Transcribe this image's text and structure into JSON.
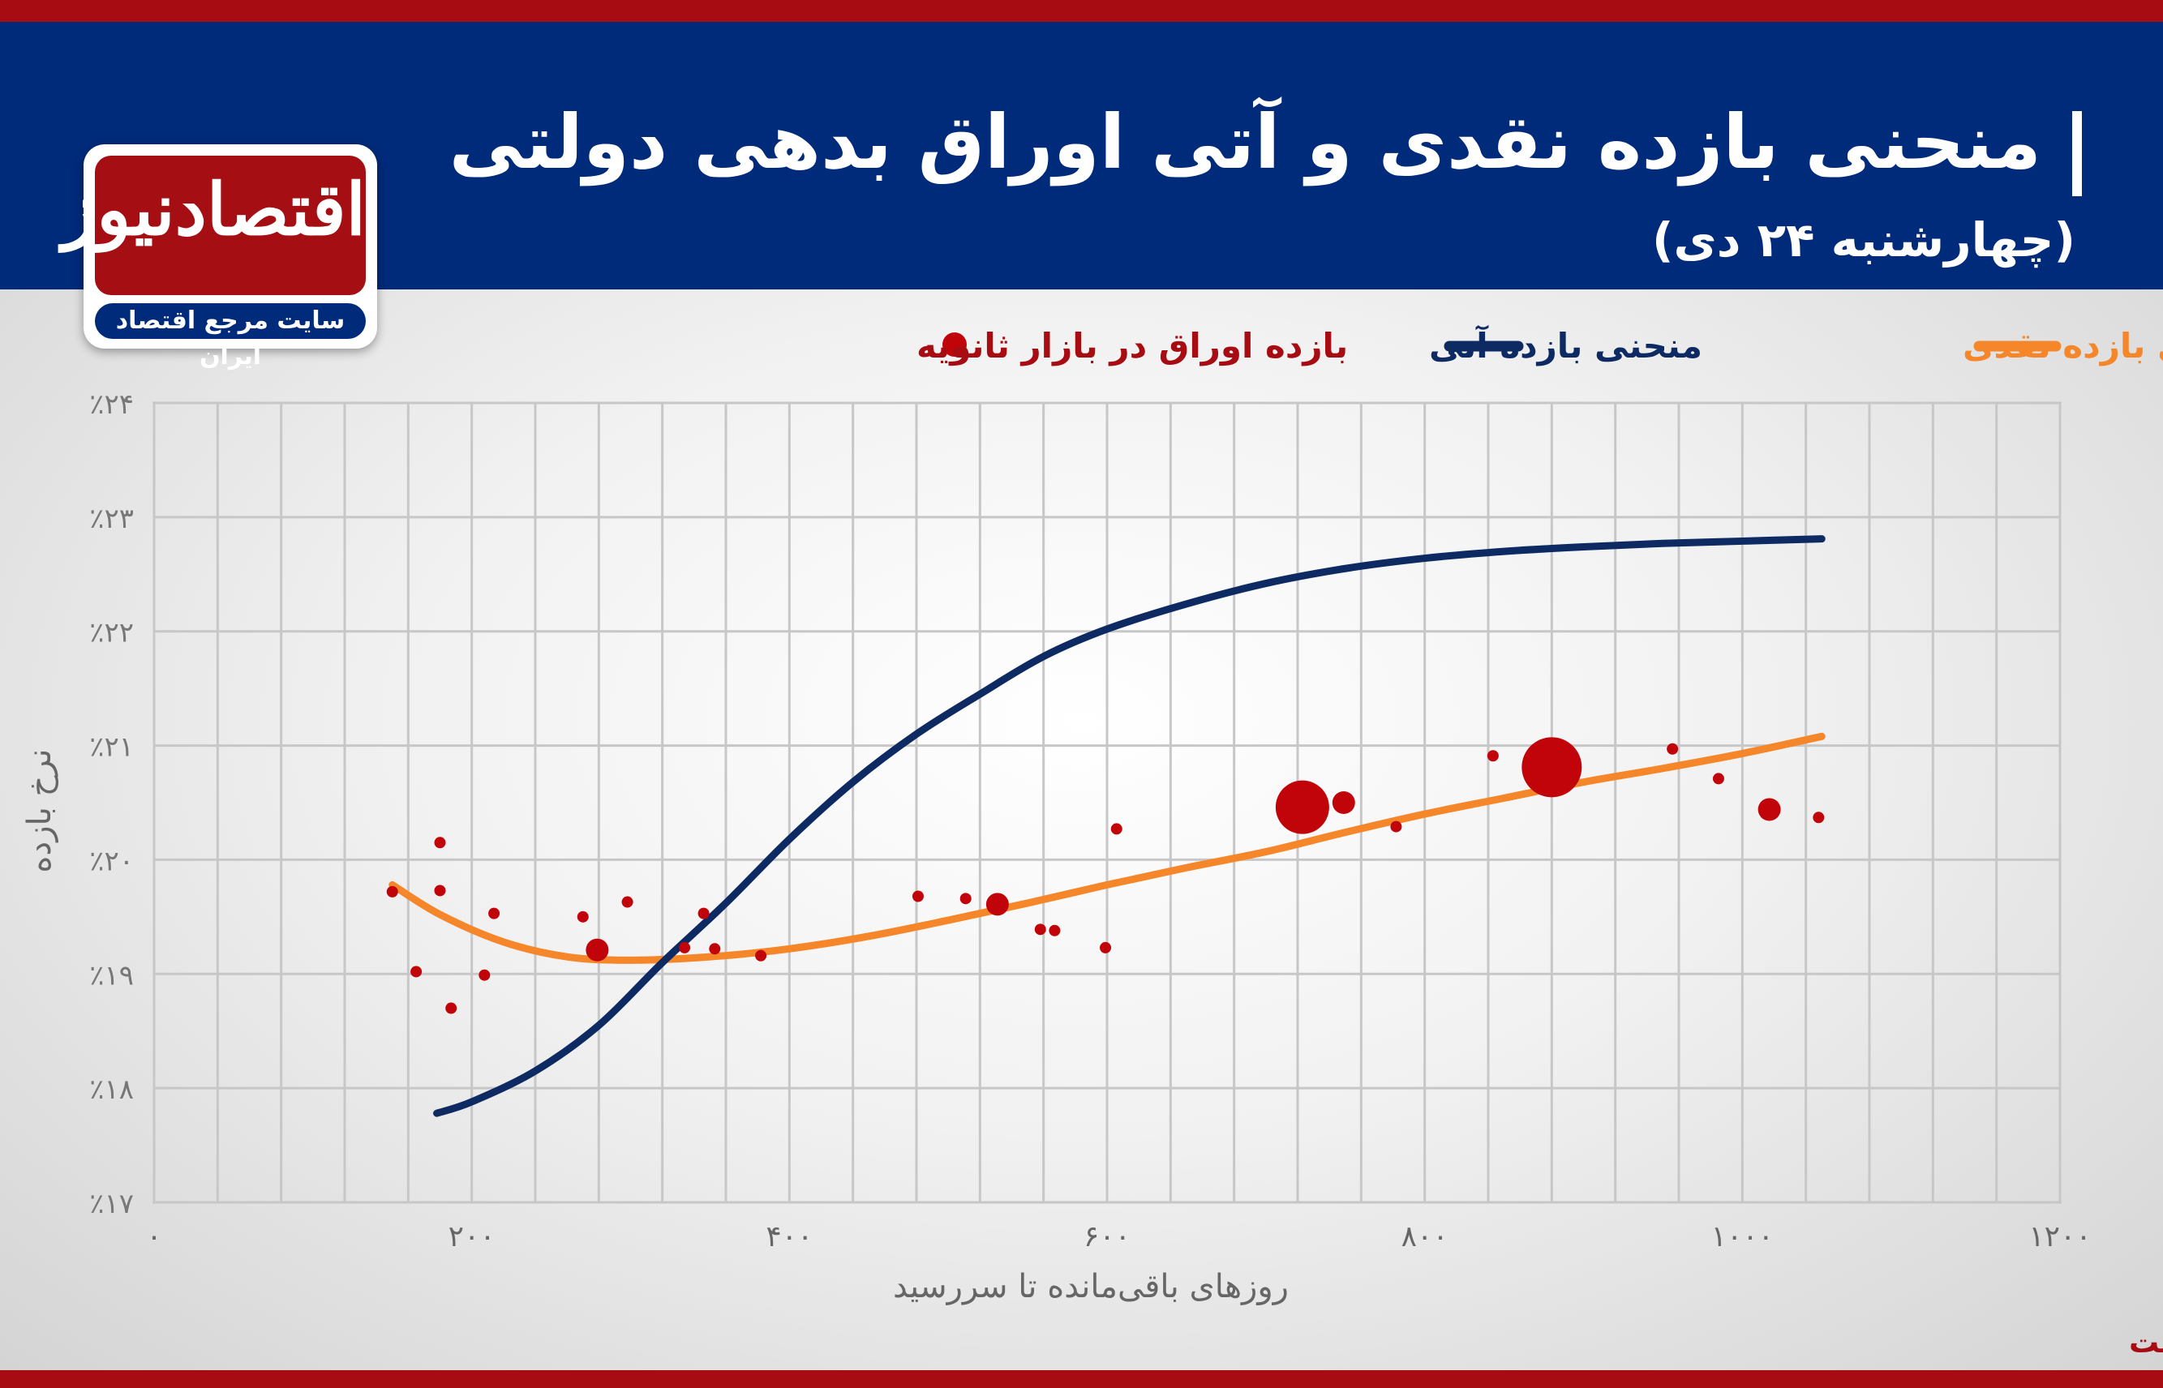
{
  "header": {
    "title": "منحنی بازده نقدی و آتی اوراق بدهی دولتی",
    "subtitle": "(چهارشنبه ۲۴ دی)"
  },
  "logo": {
    "name": "اقتصادنیوز",
    "tagline": "سایت مرجع اقتصاد ایران"
  },
  "colors": {
    "brand_red": "#a60c12",
    "header_blue": "#002a7a",
    "spot_curve": "#f5862a",
    "forward_curve": "#0d2a63",
    "points": "#c0040a",
    "grid": "#c7c7c7"
  },
  "chart_data": {
    "type": "scatter",
    "legend": {
      "spot": "منحنی بازده نقدی",
      "forward": "منحنی بازده آتی",
      "points": "بازده اوراق در بازار ثانویه"
    },
    "xlabel": "روزهای باقی‌مانده تا سررسید",
    "ylabel": "نرخ بازده",
    "xlim": [
      0,
      1200
    ],
    "ylim": [
      17,
      24
    ],
    "x_ticks": [
      0,
      200,
      400,
      600,
      800,
      1000,
      1200
    ],
    "x_tick_labels": [
      "۰",
      "۲۰۰",
      "۴۰۰",
      "۶۰۰",
      "۸۰۰",
      "۱۰۰۰",
      "۱۲۰۰"
    ],
    "y_ticks": [
      17,
      18,
      19,
      20,
      21,
      22,
      23,
      24
    ],
    "y_tick_labels": [
      "٪۱۷",
      "٪۱۸",
      "٪۱۹",
      "٪۲۰",
      "٪۲۱",
      "٪۲۲",
      "٪۲۳",
      "٪۲۴"
    ],
    "grid": true,
    "legend_position": "top",
    "series": [
      {
        "key": "spot",
        "x": [
          150,
          180,
          220,
          260,
          300,
          350,
          400,
          450,
          500,
          550,
          600,
          650,
          700,
          750,
          800,
          850,
          900,
          950,
          1000,
          1050
        ],
        "y": [
          19.78,
          19.52,
          19.28,
          19.15,
          19.12,
          19.15,
          19.22,
          19.33,
          19.47,
          19.62,
          19.78,
          19.93,
          20.07,
          20.24,
          20.4,
          20.54,
          20.68,
          20.8,
          20.93,
          21.08
        ]
      },
      {
        "key": "forward",
        "x": [
          178,
          200,
          240,
          280,
          320,
          360,
          400,
          440,
          480,
          520,
          560,
          600,
          650,
          700,
          750,
          800,
          850,
          900,
          950,
          1000,
          1050
        ],
        "y": [
          17.78,
          17.88,
          18.15,
          18.55,
          19.1,
          19.62,
          20.18,
          20.68,
          21.1,
          21.45,
          21.78,
          22.02,
          22.24,
          22.42,
          22.55,
          22.64,
          22.7,
          22.74,
          22.77,
          22.79,
          22.81
        ]
      }
    ],
    "points": [
      {
        "x": 150,
        "y": 19.72,
        "size": 1
      },
      {
        "x": 165,
        "y": 19.02,
        "size": 1
      },
      {
        "x": 180,
        "y": 20.15,
        "size": 1
      },
      {
        "x": 180,
        "y": 19.73,
        "size": 1
      },
      {
        "x": 187,
        "y": 18.7,
        "size": 1
      },
      {
        "x": 208,
        "y": 18.99,
        "size": 1
      },
      {
        "x": 214,
        "y": 19.53,
        "size": 1
      },
      {
        "x": 270,
        "y": 19.5,
        "size": 1
      },
      {
        "x": 279,
        "y": 19.21,
        "size": 2
      },
      {
        "x": 298,
        "y": 19.63,
        "size": 1
      },
      {
        "x": 334,
        "y": 19.23,
        "size": 1
      },
      {
        "x": 346,
        "y": 19.53,
        "size": 1
      },
      {
        "x": 353,
        "y": 19.22,
        "size": 1
      },
      {
        "x": 382,
        "y": 19.16,
        "size": 1
      },
      {
        "x": 481,
        "y": 19.68,
        "size": 1
      },
      {
        "x": 511,
        "y": 19.66,
        "size": 1
      },
      {
        "x": 531,
        "y": 19.61,
        "size": 2
      },
      {
        "x": 558,
        "y": 19.39,
        "size": 1
      },
      {
        "x": 567,
        "y": 19.38,
        "size": 1
      },
      {
        "x": 599,
        "y": 19.23,
        "size": 1
      },
      {
        "x": 606,
        "y": 20.27,
        "size": 1
      },
      {
        "x": 723,
        "y": 20.46,
        "size": 4
      },
      {
        "x": 749,
        "y": 20.5,
        "size": 2
      },
      {
        "x": 782,
        "y": 20.29,
        "size": 1
      },
      {
        "x": 843,
        "y": 20.91,
        "size": 1
      },
      {
        "x": 880,
        "y": 20.81,
        "size": 5
      },
      {
        "x": 956,
        "y": 20.97,
        "size": 1
      },
      {
        "x": 985,
        "y": 20.71,
        "size": 1
      },
      {
        "x": 1017,
        "y": 20.44,
        "size": 2
      },
      {
        "x": 1048,
        "y": 20.37,
        "size": 1
      }
    ],
    "footnote": "اندازه نقطه‌ها، حجم معاملات در هر نماد را نشان می‌دهد و در تخمین منحنی بازده به این نمادها وزن بیشتری داده شده است"
  }
}
